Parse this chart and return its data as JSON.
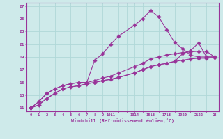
{
  "xlabel": "Windchill (Refroidissement éolien,°C)",
  "bg_color": "#ceeaea",
  "grid_color": "#b0d8d8",
  "line_color": "#993399",
  "xlim": [
    0,
    23
  ],
  "ylim": [
    11,
    27
  ],
  "xtick_labels": [
    "0",
    "1",
    "2",
    "3",
    "4",
    "5",
    "6",
    "7",
    "8",
    "9",
    "1011",
    "",
    "1314",
    "",
    "1516",
    "",
    "1718",
    "",
    "1920",
    "",
    "2122",
    "",
    "23"
  ],
  "yticks": [
    11,
    13,
    15,
    17,
    19,
    21,
    23,
    25,
    27
  ],
  "line1_x": [
    0,
    1,
    2,
    3,
    4,
    5,
    6,
    7,
    8,
    9,
    10,
    11,
    13,
    14,
    15,
    16,
    17,
    18,
    19,
    20,
    21,
    22,
    23
  ],
  "line1_y": [
    11,
    12,
    13.3,
    14,
    14.5,
    14.8,
    15,
    15,
    18.5,
    19.5,
    21,
    22.3,
    24,
    25,
    26.3,
    25.3,
    23.3,
    21.3,
    20.3,
    19.3,
    19,
    19,
    19
  ],
  "line2_x": [
    0,
    1,
    2,
    3,
    4,
    5,
    6,
    7,
    8,
    9,
    10,
    11,
    13,
    14,
    15,
    16,
    17,
    18,
    19,
    20,
    21,
    22,
    23
  ],
  "line2_y": [
    11,
    12,
    13.3,
    14,
    14.5,
    14.8,
    15,
    15,
    15.3,
    15.7,
    16,
    16.5,
    17.5,
    18,
    18.7,
    19,
    19.3,
    19.5,
    19.7,
    19.8,
    19.9,
    19.9,
    19
  ],
  "line3_x": [
    0,
    1,
    2,
    3,
    4,
    5,
    6,
    7,
    8,
    9,
    10,
    11,
    13,
    14,
    15,
    16,
    17,
    18,
    19,
    20,
    21,
    22,
    23
  ],
  "line3_y": [
    11,
    11.5,
    12.5,
    13.3,
    14,
    14.3,
    14.5,
    14.8,
    15,
    15.3,
    15.5,
    15.8,
    16.5,
    17,
    17.5,
    17.8,
    18,
    18.3,
    18.5,
    18.7,
    18.8,
    18.8,
    18.9
  ],
  "line4_x": [
    0,
    1,
    2,
    3,
    4,
    5,
    6,
    7,
    8,
    9,
    10,
    11,
    13,
    14,
    15,
    16,
    17,
    18,
    19,
    20,
    21,
    22,
    23
  ],
  "line4_y": [
    11,
    11.5,
    12.5,
    13.3,
    14,
    14.3,
    14.5,
    14.8,
    15,
    15.3,
    15.5,
    15.8,
    16.5,
    17,
    17.5,
    17.8,
    18,
    18.3,
    19.5,
    20,
    21.2,
    19,
    19
  ]
}
